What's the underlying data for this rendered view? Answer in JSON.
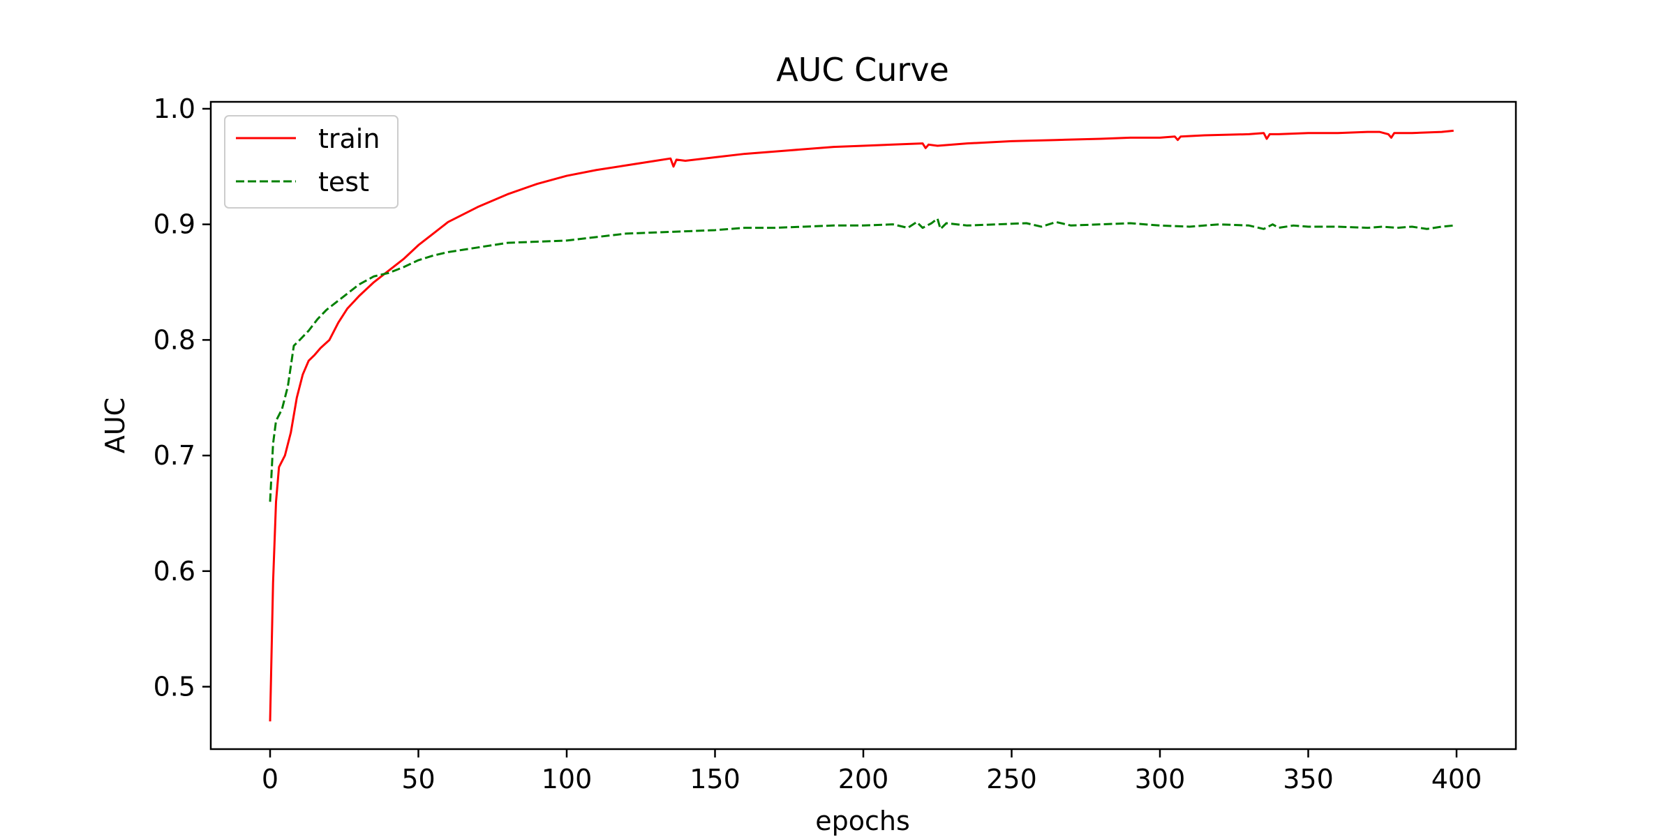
{
  "chart_data": {
    "type": "line",
    "title": "AUC Curve",
    "xlabel": "epochs",
    "ylabel": "AUC",
    "xlim": [
      -20,
      420
    ],
    "ylim": [
      0.446,
      1.006
    ],
    "xticks": [
      0,
      50,
      100,
      150,
      200,
      250,
      300,
      350,
      400
    ],
    "yticks": [
      0.5,
      0.6,
      0.7,
      0.8,
      0.9,
      1.0
    ],
    "xtick_labels": [
      "0",
      "50",
      "100",
      "150",
      "200",
      "250",
      "300",
      "350",
      "400"
    ],
    "ytick_labels": [
      "0.5",
      "0.6",
      "0.7",
      "0.8",
      "0.9",
      "1.0"
    ],
    "grid": false,
    "legend_position": "top-left",
    "series": [
      {
        "name": "train",
        "color": "#ff0000",
        "style": "solid",
        "x": [
          0,
          1,
          2,
          3,
          5,
          7,
          9,
          11,
          13,
          15,
          17,
          20,
          23,
          26,
          30,
          35,
          40,
          45,
          50,
          55,
          60,
          70,
          80,
          90,
          100,
          110,
          120,
          130,
          135,
          136,
          137,
          140,
          150,
          160,
          175,
          190,
          200,
          210,
          220,
          221,
          222,
          225,
          235,
          250,
          265,
          280,
          290,
          300,
          305,
          306,
          307,
          315,
          330,
          335,
          336,
          337,
          340,
          350,
          360,
          370,
          374,
          377,
          378,
          379,
          385,
          395,
          399
        ],
        "values": [
          0.47,
          0.59,
          0.66,
          0.69,
          0.7,
          0.72,
          0.75,
          0.77,
          0.782,
          0.787,
          0.793,
          0.8,
          0.815,
          0.827,
          0.838,
          0.85,
          0.86,
          0.87,
          0.882,
          0.892,
          0.902,
          0.915,
          0.926,
          0.935,
          0.942,
          0.947,
          0.951,
          0.955,
          0.957,
          0.95,
          0.956,
          0.955,
          0.958,
          0.961,
          0.964,
          0.967,
          0.968,
          0.969,
          0.97,
          0.966,
          0.969,
          0.968,
          0.97,
          0.972,
          0.973,
          0.974,
          0.975,
          0.975,
          0.976,
          0.973,
          0.976,
          0.977,
          0.978,
          0.979,
          0.974,
          0.978,
          0.978,
          0.979,
          0.979,
          0.98,
          0.98,
          0.978,
          0.975,
          0.979,
          0.979,
          0.98,
          0.981
        ]
      },
      {
        "name": "test",
        "color": "#008000",
        "style": "dashed",
        "x": [
          0,
          1,
          2,
          4,
          6,
          8,
          10,
          13,
          16,
          19,
          22,
          26,
          30,
          35,
          40,
          45,
          50,
          55,
          60,
          65,
          70,
          80,
          90,
          100,
          110,
          120,
          130,
          140,
          150,
          160,
          170,
          180,
          190,
          200,
          210,
          215,
          218,
          220,
          223,
          225,
          226,
          228,
          235,
          245,
          255,
          260,
          265,
          270,
          280,
          290,
          300,
          310,
          320,
          330,
          335,
          338,
          340,
          345,
          350,
          360,
          370,
          375,
          380,
          385,
          390,
          395,
          399
        ],
        "values": [
          0.66,
          0.71,
          0.73,
          0.74,
          0.76,
          0.795,
          0.8,
          0.808,
          0.818,
          0.826,
          0.832,
          0.84,
          0.848,
          0.855,
          0.858,
          0.863,
          0.869,
          0.873,
          0.876,
          0.878,
          0.88,
          0.884,
          0.885,
          0.886,
          0.889,
          0.892,
          0.893,
          0.894,
          0.895,
          0.897,
          0.897,
          0.898,
          0.899,
          0.899,
          0.9,
          0.897,
          0.902,
          0.897,
          0.901,
          0.905,
          0.896,
          0.901,
          0.899,
          0.9,
          0.901,
          0.898,
          0.902,
          0.899,
          0.9,
          0.901,
          0.899,
          0.898,
          0.9,
          0.899,
          0.896,
          0.9,
          0.897,
          0.899,
          0.898,
          0.898,
          0.897,
          0.898,
          0.897,
          0.898,
          0.896,
          0.898,
          0.899
        ]
      }
    ]
  }
}
